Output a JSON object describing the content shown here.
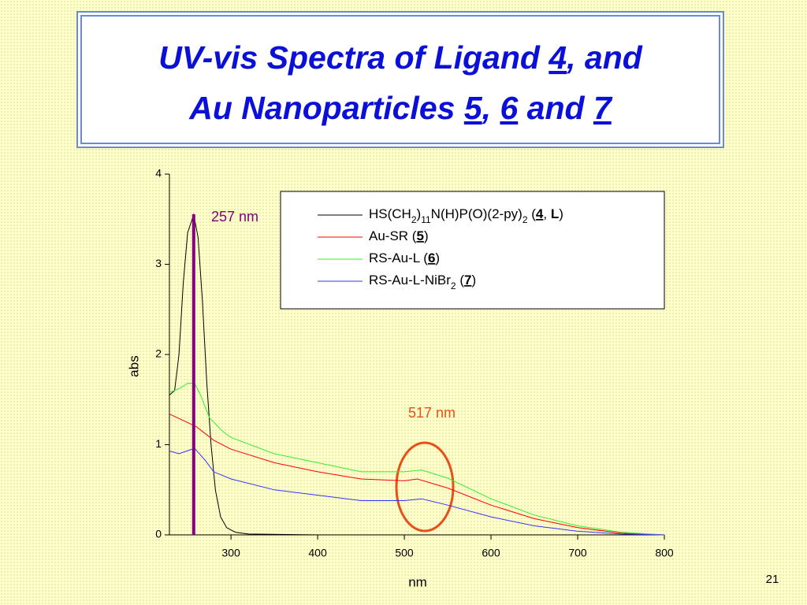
{
  "chart_data": {
    "type": "line",
    "title": [
      "UV-vis Spectra of Ligand 4, and",
      "Au Nanoparticles 5, 6 and 7"
    ],
    "x_label": "nm",
    "y_label": "abs",
    "xlim": [
      229,
      800
    ],
    "ylim": [
      0,
      4
    ],
    "xticks": [
      300,
      400,
      500,
      600,
      700,
      800
    ],
    "yticks": [
      0,
      1,
      2,
      3,
      4
    ],
    "series": [
      {
        "name": "HS(CH2)11N(H)P(O)(2-py)2 (4, L)",
        "color": "#000000",
        "x": [
          229,
          235,
          240,
          245,
          250,
          257,
          262,
          267,
          272,
          277,
          282,
          288,
          295,
          305,
          320,
          400,
          800
        ],
        "values": [
          1.55,
          1.6,
          2.0,
          2.8,
          3.35,
          3.55,
          3.3,
          2.6,
          1.7,
          1.0,
          0.5,
          0.2,
          0.08,
          0.03,
          0.01,
          0,
          0
        ]
      },
      {
        "name": "Au-SR (5)",
        "color": "#ff0000",
        "x": [
          229,
          260,
          280,
          300,
          350,
          400,
          450,
          500,
          515,
          550,
          600,
          650,
          700,
          750,
          800
        ],
        "values": [
          1.34,
          1.2,
          1.05,
          0.95,
          0.8,
          0.7,
          0.62,
          0.6,
          0.62,
          0.52,
          0.33,
          0.18,
          0.08,
          0.02,
          0
        ]
      },
      {
        "name": "RS-Au-L (6)",
        "color": "#33ee33",
        "x": [
          229,
          240,
          250,
          258,
          265,
          275,
          290,
          300,
          350,
          400,
          450,
          500,
          520,
          550,
          600,
          650,
          700,
          750,
          800
        ],
        "values": [
          1.58,
          1.62,
          1.68,
          1.68,
          1.55,
          1.3,
          1.15,
          1.08,
          0.9,
          0.8,
          0.7,
          0.7,
          0.72,
          0.63,
          0.4,
          0.22,
          0.1,
          0.03,
          0
        ]
      },
      {
        "name": "RS-Au-L-NiBr2 (7)",
        "color": "#3333ff",
        "x": [
          229,
          240,
          258,
          270,
          280,
          300,
          350,
          400,
          450,
          500,
          520,
          550,
          600,
          650,
          700,
          750,
          800
        ],
        "values": [
          0.93,
          0.9,
          0.96,
          0.83,
          0.7,
          0.62,
          0.5,
          0.44,
          0.38,
          0.38,
          0.4,
          0.33,
          0.2,
          0.1,
          0.04,
          0.01,
          0
        ]
      }
    ],
    "annotations": [
      {
        "text": "257 nm",
        "x": 257,
        "color": "#800080"
      },
      {
        "text": "517 nm",
        "color": "#e8501a"
      }
    ],
    "page_number": "21"
  }
}
